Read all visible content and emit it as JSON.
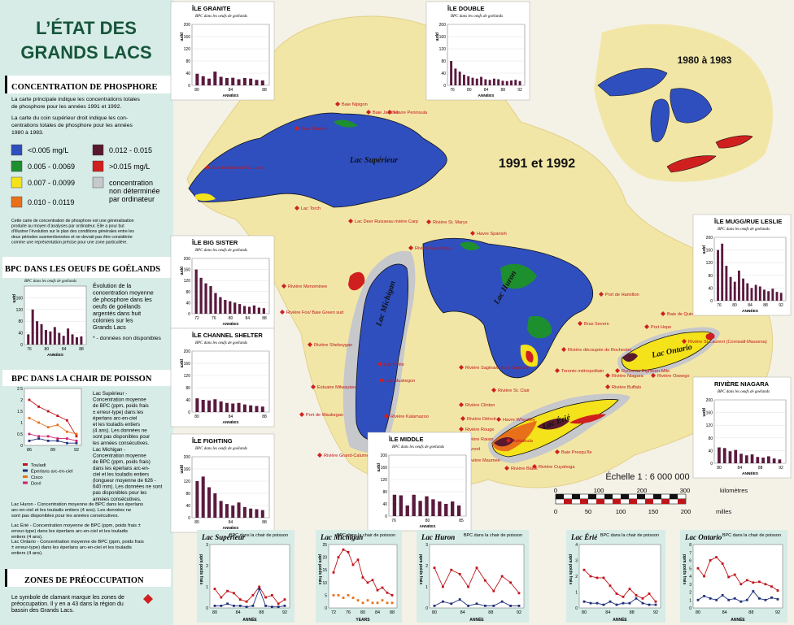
{
  "title_line1": "L’ÉTAT DES",
  "title_line2": "GRANDS LACS",
  "sections": {
    "phosphore": {
      "heading": "CONCENTRATION DE PHOSPHORE",
      "p1": [
        "La carte principale indique les concentrations totales",
        "de phosphore pour les années 1991 et 1992."
      ],
      "p2": [
        "La carte du coin supérieur droit indique les con-",
        "centrations totales de phosphore pour les années",
        "1980 à 1983."
      ],
      "legend": [
        {
          "label": "<0.005 mg/L",
          "color": "#2f4fbf"
        },
        {
          "label": "0.012 - 0.015",
          "color": "#5a1a2e"
        },
        {
          "label": "0.005 - 0.0069",
          "color": "#1e8f2e"
        },
        {
          "label": ">0.015 mg/L",
          "color": "#d01f1f"
        },
        {
          "label": "0.007 - 0.0099",
          "color": "#f4e21a"
        },
        {
          "label": "concentration",
          "label2": "non déterminée",
          "label3": "par ordinateur",
          "color": "#c6c8cc"
        },
        {
          "label": "0.010 - 0.0119",
          "color": "#e8701b"
        }
      ],
      "note": [
        "Cette carte de concentration de phosphore est une généralisation",
        "produite au moyen d’analyses par ordinateur. Elle a pour but",
        "d’illustrer l’évolution sur le plan des conditions générales entre les",
        "deux périodes susmentionnées et ne devrait pas être considérée",
        "comme une représentation précise pour une zone particulière."
      ]
    },
    "bpc_oeufs": {
      "heading": "BPC DANS LES OEUFS DE GOÉLANDS",
      "chart_sub": "BPC dans les oeufs de goélands",
      "desc": [
        "Évolution de la",
        "concentration moyenne",
        "de phosphore dans les",
        "oeufs de goélands",
        "argentés dans huit",
        "colonies sur les",
        "Grands Lacs"
      ],
      "footnote": "* - données non disponibles",
      "years_label": "ANNÉES"
    },
    "bpc_poisson": {
      "heading": "BPC DANS LA CHAIR DE POISSON",
      "superieur": [
        "Lac Supérieur -",
        "Concentration moyenne",
        "de BPC (ppm, poids frais",
        "± erreur-type) dans les",
        "éperlans arc-en-ciel",
        "et les touladis entiers",
        "(4 ans). Les données ne",
        "sont pas disponibles pour",
        "les années consécutives."
      ],
      "michigan": [
        "Lac Michigan -",
        "Concentration moyenne",
        "de BPC (ppm, poids frais)",
        "dans les éperlans arc-en-",
        "ciel et les touladis entiers",
        "(longueur moyenne de 626 -",
        "640 mm). Les données ne sont",
        "pas disponibles pour les",
        "années consécutives."
      ],
      "huron": "Lac Huron - Concentration moyenne de BPC dans les éperlans arc-en-ciel et les touladis entiers (4 ans). Les données ne sont pas disponibles pour les années consécutives.",
      "erie": "Lac Érié - Concentration moyenne de BPC (ppm, poids frais ± erreur-type) dans les éperlans arc-en-ciel et les touladis entiers (4 ans).",
      "ontario": "Lac Ontario - Concentration moyenne de BPC (ppm, poids frais ± erreur-type) dans les éperlans arc-en-ciel et les touladis entiers (4 ans).",
      "legend": [
        {
          "label": "Touladi",
          "color": "#c0141b"
        },
        {
          "label": "Éperlans arc-en-ciel",
          "color": "#1e2f7a"
        },
        {
          "label": "Cisco",
          "color": "#e8701b"
        },
        {
          "label": "Doré",
          "color": "#d02070"
        }
      ]
    },
    "zones": {
      "heading": "ZONES DE PRÉOCCUPATION",
      "text": [
        "Le symbole de clamant marque les zones de",
        "préoccupation. Il y en a 43 dans la région du",
        "bassin des Grands Lacs."
      ]
    }
  },
  "map": {
    "period_main": "1991 et 1992",
    "period_inset": "1980 à 1983",
    "lakes": {
      "superieur": "Lac Supérieur",
      "michigan": "Lac Michigan",
      "huron": "Lac Huron",
      "erie": "Lac Érié",
      "ontario": "Lac Ontario"
    },
    "places": [
      "Baie Nipigon",
      "Baie Jackfish",
      "Havre Peninsula",
      "Baie Thunder",
      "Baie Deadwood/ St. Louis",
      "Lac Torch",
      "Lac Deer Ruisseau rivière Carp",
      "Rivière St. Marys",
      "Havre Spanish",
      "Rivière Manistique",
      "Rivière Menominee",
      "Rivière Fox/ Baie Green sud",
      "Rivière Sheboygan",
      "Estuaire Milwaukee",
      "Port de Waukegan",
      "Rivière Grand-Calumet/ Canal Indiana Harbor",
      "Lac White",
      "Lac Muskegon",
      "Rivière Kalamazoo",
      "Rivière Saginaw/ Baie Saginaw",
      "Rivière St. Clair",
      "Rivière Clinton",
      "Rivière Détroit",
      "Rivière Rouge",
      "Rivière Raisin",
      "Rivière Maumee",
      "Havre Wheatley",
      "Rivière Black",
      "Rivière Cuyahoga",
      "Ashtabula",
      "Baie Presqu’île",
      "Rivière Buffalo",
      "Rivière Niagara",
      "Ruisseau Eighteen-Mile",
      "Port Hope",
      "Baie de Quinte",
      "Rivière St-Laurent (Cornwall-Massena)",
      "Rivière Oswego",
      "Rivière découpée de Rochester",
      "Toronto métropolitain",
      "Port de Hamilton",
      "Bras Severn",
      "Port de Collingwood"
    ],
    "scale": "Échelle 1 : 6 000 000",
    "scale_km_ticks": [
      "0",
      "100",
      "200",
      "300"
    ],
    "scale_km_unit": "kilomètres",
    "scale_mi_ticks": [
      "0",
      "50",
      "100",
      "150",
      "200"
    ],
    "scale_mi_unit": "milles"
  },
  "egg_charts": [
    {
      "name": "ÎLE GRANITE",
      "x_ticks": [
        "80",
        "84",
        "88"
      ],
      "values": [
        38,
        30,
        22,
        45,
        28,
        24,
        25,
        20,
        24,
        22,
        18,
        16
      ],
      "ymax": 200
    },
    {
      "name": "ÎLE DOUBLE",
      "x_ticks": [
        "76",
        "80",
        "84",
        "88",
        "92"
      ],
      "values": [
        80,
        55,
        45,
        35,
        30,
        25,
        22,
        28,
        20,
        18,
        22,
        20,
        15,
        14,
        16,
        18,
        14
      ],
      "ymax": 200
    },
    {
      "name": "ÎLE BIG SISTER",
      "x_ticks": [
        "72",
        "76",
        "80",
        "84",
        "88"
      ],
      "values": [
        160,
        130,
        110,
        100,
        75,
        60,
        50,
        45,
        40,
        35,
        28,
        25,
        30,
        22,
        20
      ],
      "ymax": 200
    },
    {
      "name": "ÎLE CHANNEL SHELTER",
      "x_ticks": [
        "80",
        "84",
        "88"
      ],
      "values": [
        45,
        40,
        38,
        42,
        35,
        30,
        28,
        30,
        25,
        22,
        20,
        18
      ],
      "ymax": 200
    },
    {
      "name": "ÎLE FIGHTING",
      "x_ticks": [
        "80",
        "84",
        "88"
      ],
      "values": [
        120,
        135,
        100,
        80,
        55,
        45,
        40,
        50,
        35,
        30,
        28,
        25
      ],
      "ymax": 200
    },
    {
      "name": "ÎLE MIDDLE",
      "x_ticks": [
        "76",
        "80",
        "85"
      ],
      "values": [
        70,
        68,
        35,
        70,
        50,
        65,
        55,
        48,
        40,
        48,
        35
      ],
      "ymax": 200
    },
    {
      "name": "ÎLE MUGG/RUE LESLIE",
      "x_ticks": [
        "76",
        "80",
        "84",
        "88",
        "92"
      ],
      "values": [
        160,
        180,
        110,
        75,
        60,
        95,
        70,
        55,
        40,
        50,
        45,
        35,
        30,
        38,
        28,
        25
      ],
      "ymax": 200
    },
    {
      "name": "RIVIÈRE NIAGARA",
      "x_ticks": [
        "80",
        "84",
        "88",
        "92"
      ],
      "values": [
        50,
        48,
        38,
        42,
        30,
        25,
        28,
        20,
        18,
        22,
        15,
        12
      ],
      "ymax": 200
    }
  ],
  "egg_axis_label": "ppm",
  "egg_chart_sub": "BPC dans les oeufs de goélands",
  "egg_years": "ANNÉES",
  "fish_charts": [
    {
      "name": "Lac Supérieur",
      "sub": "BPC dans la chair de poisson",
      "x_ticks": [
        "80",
        "84",
        "88",
        "92"
      ],
      "ymax": 3,
      "y_ticks": [
        "0",
        "1",
        "2",
        "3"
      ],
      "series": [
        {
          "name": "Touladi",
          "values": [
            0.9,
            0.5,
            0.8,
            0.7,
            0.4,
            0.3,
            0.6,
            1.0,
            0.5,
            0.6,
            0.2,
            0.4
          ]
        },
        {
          "name": "Éperlans arc-en-ciel",
          "values": [
            0.1,
            0.1,
            0.2,
            0.1,
            0.1,
            0.05,
            0.1,
            0.9,
            0.1,
            0.05,
            0.05,
            0.1
          ]
        }
      ]
    },
    {
      "name": "Lac Michigan",
      "sub": "BPC dans la chair de poisson",
      "x_ticks": [
        "72",
        "76",
        "80",
        "84",
        "88"
      ],
      "ymax": 25,
      "y_ticks": [
        "0",
        "5",
        "10",
        "15",
        "20",
        "25"
      ],
      "series": [
        {
          "name": "Touladi",
          "values": [
            14,
            20,
            23,
            22,
            17,
            19,
            12,
            10,
            11,
            7,
            8,
            6,
            5
          ]
        },
        {
          "name": "Cisco",
          "values": [
            5,
            5,
            4,
            5,
            4,
            3,
            2,
            3,
            2,
            2,
            3,
            2,
            2
          ]
        }
      ]
    },
    {
      "name": "Lac Huron",
      "sub": "BPC dans la chair de poisson",
      "x_ticks": [
        "80",
        "84",
        "88",
        "92"
      ],
      "ymax": 3,
      "y_ticks": [
        "0",
        "1",
        "2",
        "3"
      ],
      "series": [
        {
          "name": "Touladi",
          "values": [
            1.9,
            1.0,
            1.8,
            1.6,
            1.0,
            1.9,
            1.3,
            0.8,
            1.5,
            1.2,
            0.7
          ]
        },
        {
          "name": "Éperlans arc-en-ciel",
          "values": [
            0.1,
            0.3,
            0.2,
            0.4,
            0.1,
            0.2,
            0.1,
            0.1,
            0.3,
            0.1,
            0.1
          ]
        }
      ]
    },
    {
      "name": "Lac Érié",
      "sub": "BPC dans la chair de poisson",
      "x_ticks": [
        "80",
        "84",
        "88",
        "92"
      ],
      "ymax": 4,
      "y_ticks": [
        "0",
        "1",
        "2",
        "3",
        "4"
      ],
      "series": [
        {
          "name": "Touladi",
          "values": [
            2.4,
            2.0,
            1.9,
            1.9,
            1.4,
            0.9,
            0.7,
            1.2,
            0.8,
            0.6,
            0.9,
            0.4
          ]
        },
        {
          "name": "Éperlans arc-en-ciel",
          "values": [
            0.4,
            0.3,
            0.3,
            0.2,
            0.4,
            0.2,
            0.3,
            0.3,
            0.6,
            0.3,
            0.2,
            0.2
          ]
        }
      ]
    },
    {
      "name": "Lac Ontario",
      "sub": "BPC dans la chair de poisson",
      "x_ticks": [
        "80",
        "84",
        "88",
        "92"
      ],
      "ymax": 8,
      "y_ticks": [
        "0",
        "1",
        "2",
        "3",
        "4",
        "5",
        "6",
        "7",
        "8"
      ],
      "series": [
        {
          "name": "Touladi",
          "values": [
            5.0,
            4.0,
            6.0,
            6.4,
            5.6,
            3.9,
            4.2,
            3.0,
            3.5,
            3.2,
            3.3,
            3.0,
            2.7,
            2.2
          ]
        },
        {
          "name": "Éperlans arc-en-ciel",
          "values": [
            1.0,
            1.5,
            1.2,
            1.0,
            1.6,
            1.0,
            1.2,
            0.8,
            1.0,
            2.1,
            1.2,
            1.0,
            1.3,
            1.1
          ]
        }
      ]
    }
  ],
  "fish_axis_label": "ppm poids frais",
  "fish_x_label": "ANNÉE",
  "fish_x_label_michigan": "YEARS",
  "left_fish_chart": {
    "x_ticks": [
      "86",
      "89",
      "92"
    ],
    "series": [
      {
        "name": "Touladi",
        "values": [
          2.0,
          1.7,
          1.5,
          1.3,
          1.1,
          0.4
        ]
      },
      {
        "name": "Éperlans arc-en-ciel",
        "values": [
          0.2,
          0.3,
          0.2,
          0.2,
          0.1,
          0.1
        ]
      },
      {
        "name": "Cisco",
        "values": [
          1.2,
          1.0,
          0.8,
          0.9,
          0.6,
          0.5
        ]
      },
      {
        "name": "Doré",
        "values": [
          0.5,
          0.4,
          0.4,
          0.3,
          0.3,
          0.2
        ]
      }
    ],
    "ymax": 2.5,
    "y_ticks": [
      "0",
      "0.5",
      "1",
      "1.5",
      "2",
      "2.5"
    ]
  },
  "left_egg_chart": {
    "x_ticks": [
      "76",
      "80",
      "84",
      "88"
    ],
    "values": [
      35,
      120,
      80,
      70,
      50,
      45,
      60,
      40,
      30,
      55,
      35,
      25,
      28
    ],
    "ymax": 200,
    "y_ticks": [
      "0",
      "40",
      "80",
      "120",
      "160"
    ]
  }
}
